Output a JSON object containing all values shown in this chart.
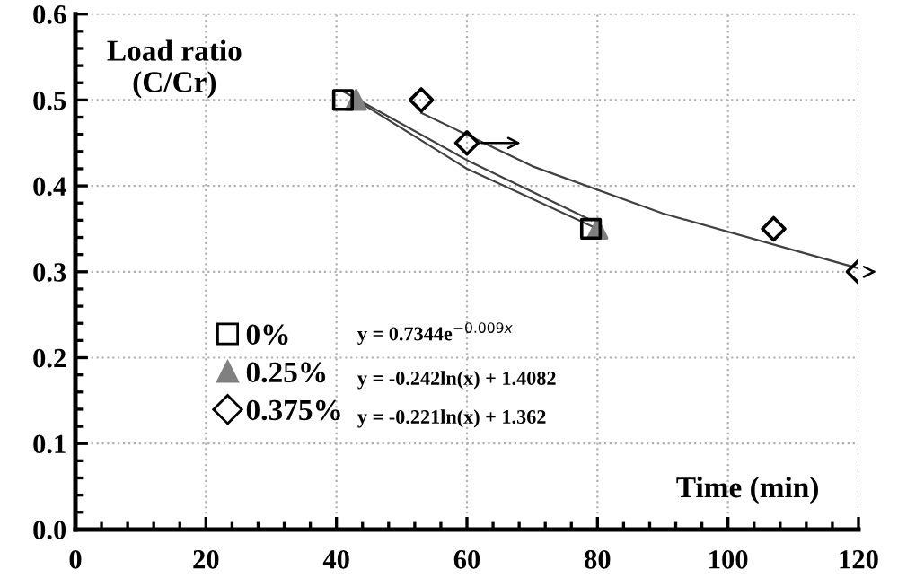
{
  "chart_data": {
    "type": "scatter",
    "xlabel": "Time (min)",
    "ylabel": "Load ratio\n(C/Cr)",
    "xlim": [
      0,
      120
    ],
    "xticks": [
      0,
      20,
      40,
      60,
      80,
      100,
      120
    ],
    "ylim": [
      0,
      0.6
    ],
    "yticks": [
      {
        "value": 0,
        "label": "0.0"
      },
      0.1,
      0.2,
      0.3,
      0.4,
      0.5,
      0.6
    ],
    "grid": true,
    "legend": "center left",
    "series": [
      {
        "name": "0%",
        "marker": "square",
        "color": "#000000",
        "x": [
          41,
          79
        ],
        "values": [
          0.5,
          0.35
        ]
      },
      {
        "name": "0.25%",
        "marker": "triangle",
        "color": "#808080",
        "x": [
          43,
          80
        ],
        "values": [
          0.5,
          0.35
        ]
      },
      {
        "name": "0.375%",
        "marker": "diamond",
        "color": "#000000",
        "x": [
          53,
          60,
          107,
          120
        ],
        "values": [
          0.5,
          0.45,
          0.35,
          0.3
        ]
      },
      {
        "type": "line",
        "marker": "none",
        "color": "#404040",
        "x": [
          41,
          60,
          79
        ],
        "values": [
          0.51,
          0.43,
          0.36
        ]
      },
      {
        "type": "line",
        "marker": "none",
        "color": "#404040",
        "x": [
          43,
          60,
          80
        ],
        "values": [
          0.5,
          0.42,
          0.35
        ]
      },
      {
        "type": "line",
        "marker": "none",
        "color": "#404040",
        "x": [
          53,
          70,
          90,
          120
        ],
        "values": [
          0.485,
          0.423,
          0.368,
          0.304
        ]
      }
    ],
    "annotations": [
      "y = 0.7344e$^{−0.009x}$",
      "y = -0.242ln(x) + 1.4082",
      "y = -0.221ln(x) + 1.362"
    ]
  }
}
